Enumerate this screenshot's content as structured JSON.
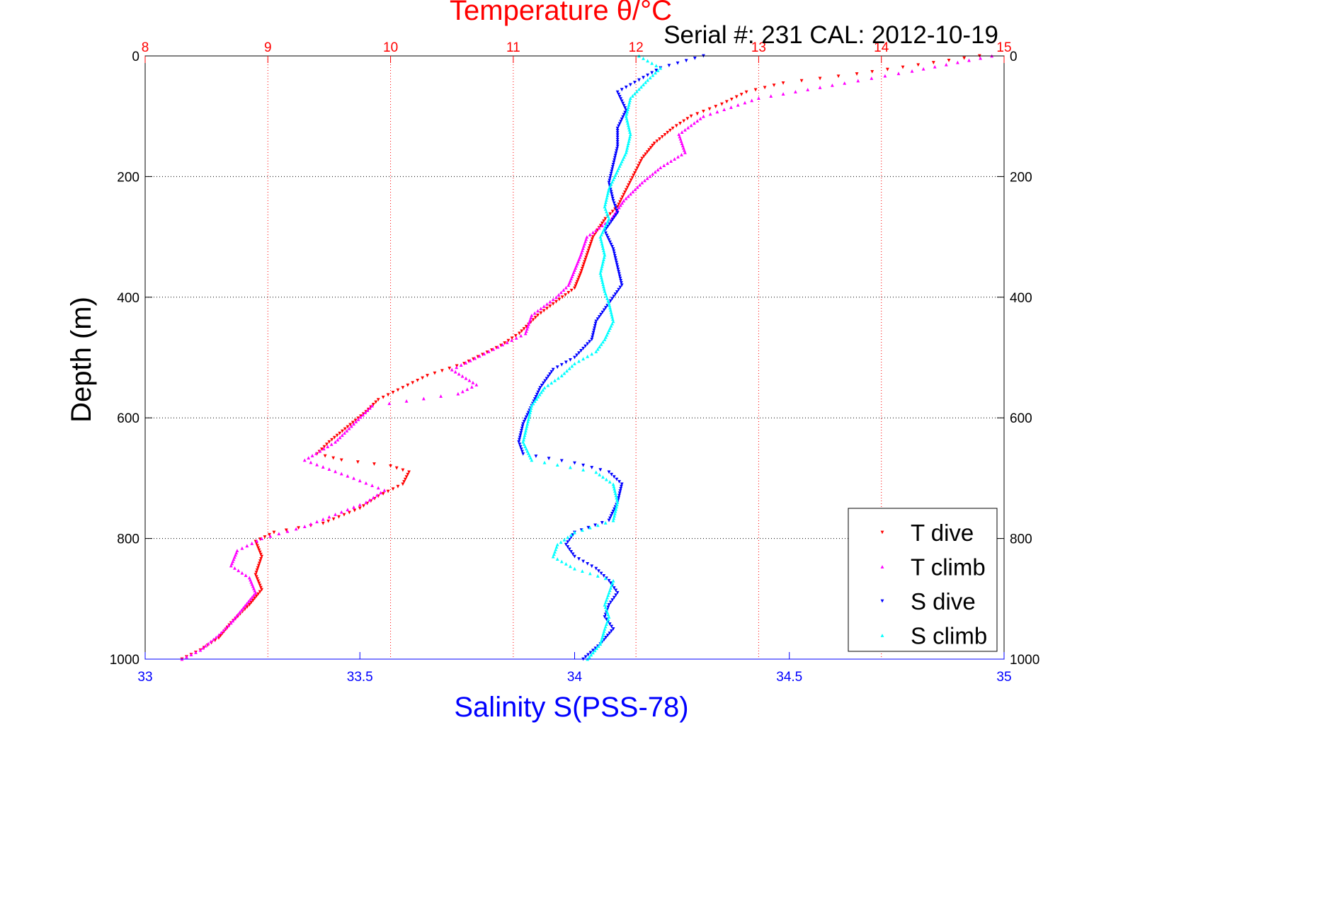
{
  "chart_data": {
    "type": "scatter",
    "title": "Temperature θ/°C",
    "subtitle": "Serial #: 231  CAL: 2012-10-19",
    "xlabel": "Salinity S(PSS-78)",
    "ylabel": "Depth (m)",
    "x_top": {
      "label": "Temperature θ/°C",
      "lim": [
        8,
        15
      ],
      "ticks": [
        8,
        9,
        10,
        11,
        12,
        13,
        14,
        15
      ],
      "color": "#ff0000"
    },
    "x_bottom": {
      "label": "Salinity S(PSS-78)",
      "lim": [
        33,
        35
      ],
      "ticks": [
        33,
        33.5,
        34,
        34.5,
        35
      ],
      "color": "#0000ff"
    },
    "y": {
      "label": "Depth (m)",
      "lim": [
        0,
        1000
      ],
      "reversed": true,
      "ticks": [
        0,
        200,
        400,
        600,
        800,
        1000
      ]
    },
    "grid": true,
    "legend_position": "bottom-right",
    "series": [
      {
        "name": "T dive",
        "axis": "top",
        "color": "#ff0000",
        "marker": "triangle-down",
        "points": [
          [
            14.8,
            0
          ],
          [
            14.3,
            15
          ],
          [
            13.8,
            30
          ],
          [
            13.2,
            45
          ],
          [
            12.9,
            60
          ],
          [
            12.7,
            80
          ],
          [
            12.45,
            100
          ],
          [
            12.3,
            120
          ],
          [
            12.15,
            145
          ],
          [
            12.05,
            170
          ],
          [
            12.0,
            190
          ],
          [
            11.95,
            210
          ],
          [
            11.9,
            230
          ],
          [
            11.85,
            250
          ],
          [
            11.75,
            270
          ],
          [
            11.65,
            300
          ],
          [
            11.6,
            330
          ],
          [
            11.55,
            360
          ],
          [
            11.5,
            385
          ],
          [
            11.4,
            400
          ],
          [
            11.2,
            430
          ],
          [
            11.05,
            460
          ],
          [
            10.9,
            480
          ],
          [
            10.6,
            510
          ],
          [
            10.3,
            530
          ],
          [
            10.1,
            550
          ],
          [
            9.9,
            570
          ],
          [
            9.8,
            590
          ],
          [
            9.65,
            615
          ],
          [
            9.5,
            640
          ],
          [
            9.4,
            660
          ],
          [
            9.6,
            670
          ],
          [
            10.0,
            680
          ],
          [
            10.15,
            690
          ],
          [
            10.1,
            710
          ],
          [
            9.9,
            730
          ],
          [
            9.75,
            750
          ],
          [
            9.45,
            775
          ],
          [
            9.05,
            790
          ],
          [
            8.9,
            805
          ],
          [
            8.95,
            830
          ],
          [
            8.9,
            860
          ],
          [
            8.95,
            885
          ],
          [
            8.85,
            910
          ],
          [
            8.7,
            940
          ],
          [
            8.6,
            965
          ],
          [
            8.45,
            985
          ],
          [
            8.3,
            1000
          ]
        ]
      },
      {
        "name": "T climb",
        "axis": "top",
        "color": "#ff00ff",
        "marker": "triangle-up",
        "points": [
          [
            14.9,
            0
          ],
          [
            14.25,
            25
          ],
          [
            13.7,
            45
          ],
          [
            13.0,
            70
          ],
          [
            12.55,
            100
          ],
          [
            12.35,
            130
          ],
          [
            12.4,
            160
          ],
          [
            12.2,
            185
          ],
          [
            12.05,
            210
          ],
          [
            11.9,
            240
          ],
          [
            11.8,
            270
          ],
          [
            11.6,
            300
          ],
          [
            11.55,
            330
          ],
          [
            11.5,
            355
          ],
          [
            11.45,
            380
          ],
          [
            11.35,
            400
          ],
          [
            11.15,
            430
          ],
          [
            11.1,
            460
          ],
          [
            10.8,
            490
          ],
          [
            10.5,
            520
          ],
          [
            10.7,
            545
          ],
          [
            10.55,
            560
          ],
          [
            9.85,
            580
          ],
          [
            9.7,
            610
          ],
          [
            9.55,
            640
          ],
          [
            9.3,
            670
          ],
          [
            9.7,
            700
          ],
          [
            9.95,
            720
          ],
          [
            9.8,
            740
          ],
          [
            9.55,
            760
          ],
          [
            9.3,
            780
          ],
          [
            8.95,
            800
          ],
          [
            8.75,
            820
          ],
          [
            8.7,
            845
          ],
          [
            8.85,
            865
          ],
          [
            8.9,
            890
          ],
          [
            8.8,
            915
          ],
          [
            8.7,
            940
          ],
          [
            8.6,
            960
          ],
          [
            8.45,
            985
          ],
          [
            8.3,
            1000
          ]
        ]
      },
      {
        "name": "S dive",
        "axis": "bottom",
        "color": "#0000ff",
        "marker": "triangle-down",
        "points": [
          [
            34.3,
            0
          ],
          [
            34.2,
            20
          ],
          [
            34.15,
            40
          ],
          [
            34.1,
            60
          ],
          [
            34.12,
            90
          ],
          [
            34.1,
            120
          ],
          [
            34.1,
            150
          ],
          [
            34.09,
            180
          ],
          [
            34.08,
            210
          ],
          [
            34.09,
            240
          ],
          [
            34.1,
            260
          ],
          [
            34.07,
            290
          ],
          [
            34.09,
            320
          ],
          [
            34.1,
            350
          ],
          [
            34.11,
            380
          ],
          [
            34.08,
            410
          ],
          [
            34.05,
            440
          ],
          [
            34.04,
            470
          ],
          [
            34.0,
            500
          ],
          [
            33.95,
            520
          ],
          [
            33.92,
            550
          ],
          [
            33.9,
            580
          ],
          [
            33.88,
            610
          ],
          [
            33.87,
            640
          ],
          [
            33.88,
            660
          ],
          [
            34.0,
            675
          ],
          [
            34.08,
            690
          ],
          [
            34.11,
            710
          ],
          [
            34.1,
            740
          ],
          [
            34.08,
            770
          ],
          [
            34.0,
            790
          ],
          [
            33.98,
            810
          ],
          [
            34.0,
            830
          ],
          [
            34.05,
            850
          ],
          [
            34.08,
            870
          ],
          [
            34.1,
            890
          ],
          [
            34.08,
            910
          ],
          [
            34.07,
            930
          ],
          [
            34.09,
            950
          ],
          [
            34.06,
            975
          ],
          [
            34.02,
            1000
          ]
        ]
      },
      {
        "name": "S climb",
        "axis": "bottom",
        "color": "#00ffff",
        "marker": "triangle-up",
        "points": [
          [
            34.15,
            0
          ],
          [
            34.2,
            20
          ],
          [
            34.17,
            40
          ],
          [
            34.13,
            70
          ],
          [
            34.12,
            100
          ],
          [
            34.13,
            130
          ],
          [
            34.12,
            160
          ],
          [
            34.1,
            190
          ],
          [
            34.08,
            220
          ],
          [
            34.07,
            250
          ],
          [
            34.08,
            270
          ],
          [
            34.06,
            300
          ],
          [
            34.07,
            330
          ],
          [
            34.06,
            360
          ],
          [
            34.07,
            390
          ],
          [
            34.08,
            410
          ],
          [
            34.09,
            440
          ],
          [
            34.07,
            470
          ],
          [
            34.05,
            490
          ],
          [
            34.0,
            510
          ],
          [
            33.97,
            530
          ],
          [
            33.93,
            550
          ],
          [
            33.9,
            580
          ],
          [
            33.89,
            610
          ],
          [
            33.88,
            640
          ],
          [
            33.9,
            670
          ],
          [
            34.05,
            690
          ],
          [
            34.09,
            710
          ],
          [
            34.1,
            740
          ],
          [
            34.09,
            770
          ],
          [
            34.0,
            790
          ],
          [
            33.96,
            810
          ],
          [
            33.95,
            830
          ],
          [
            34.0,
            850
          ],
          [
            34.09,
            870
          ],
          [
            34.08,
            890
          ],
          [
            34.07,
            910
          ],
          [
            34.08,
            930
          ],
          [
            34.07,
            950
          ],
          [
            34.06,
            975
          ],
          [
            34.03,
            1000
          ]
        ]
      }
    ]
  }
}
